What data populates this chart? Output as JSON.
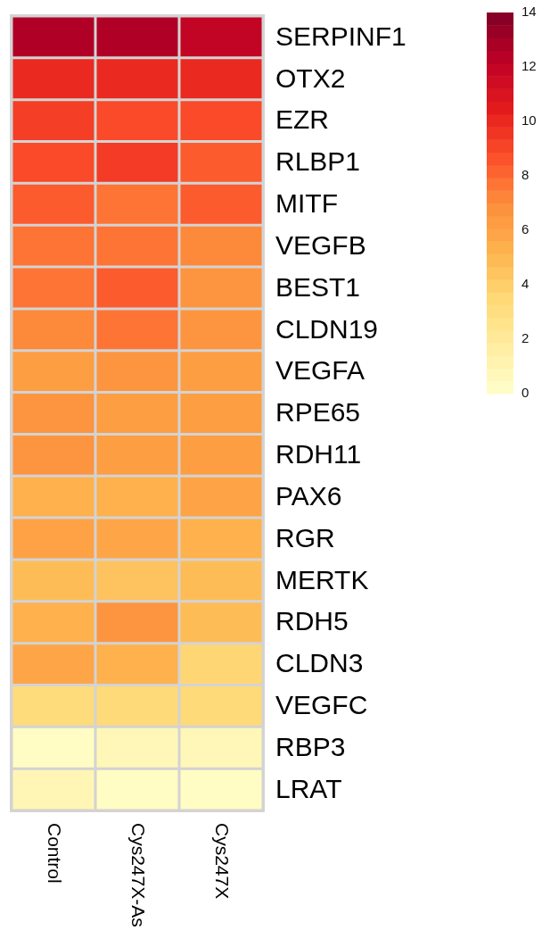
{
  "chart_data": {
    "type": "heatmap",
    "categories": [
      "Control",
      "Cys247X-As",
      "Cys247X"
    ],
    "y_categories": [
      "SERPINF1",
      "OTX2",
      "EZR",
      "RLBP1",
      "MITF",
      "VEGFB",
      "BEST1",
      "CLDN19",
      "VEGFA",
      "RPE65",
      "RDH11",
      "PAX6",
      "RGR",
      "MERTK",
      "RDH5",
      "CLDN3",
      "VEGFC",
      "RBP3",
      "LRAT"
    ],
    "cells": [
      [
        12.6,
        12.6,
        12.0
      ],
      [
        10.0,
        10.0,
        10.0
      ],
      [
        9.3,
        8.9,
        8.9
      ],
      [
        8.9,
        9.4,
        8.4
      ],
      [
        8.4,
        7.7,
        8.4
      ],
      [
        7.7,
        7.7,
        7.1
      ],
      [
        7.7,
        8.4,
        6.6
      ],
      [
        7.1,
        7.7,
        6.6
      ],
      [
        6.2,
        6.6,
        6.2
      ],
      [
        6.6,
        6.2,
        6.2
      ],
      [
        6.6,
        6.2,
        6.2
      ],
      [
        5.3,
        5.3,
        5.9
      ],
      [
        6.0,
        5.8,
        5.3
      ],
      [
        4.8,
        4.5,
        4.8
      ],
      [
        5.3,
        6.6,
        4.8
      ],
      [
        5.8,
        5.3,
        3.6
      ],
      [
        3.3,
        3.4,
        3.4
      ],
      [
        0.3,
        0.8,
        0.8
      ],
      [
        0.9,
        0.3,
        0.3
      ]
    ],
    "clim": [
      0,
      14
    ],
    "cticks": [
      0,
      2,
      4,
      6,
      8,
      10,
      12,
      14
    ]
  }
}
